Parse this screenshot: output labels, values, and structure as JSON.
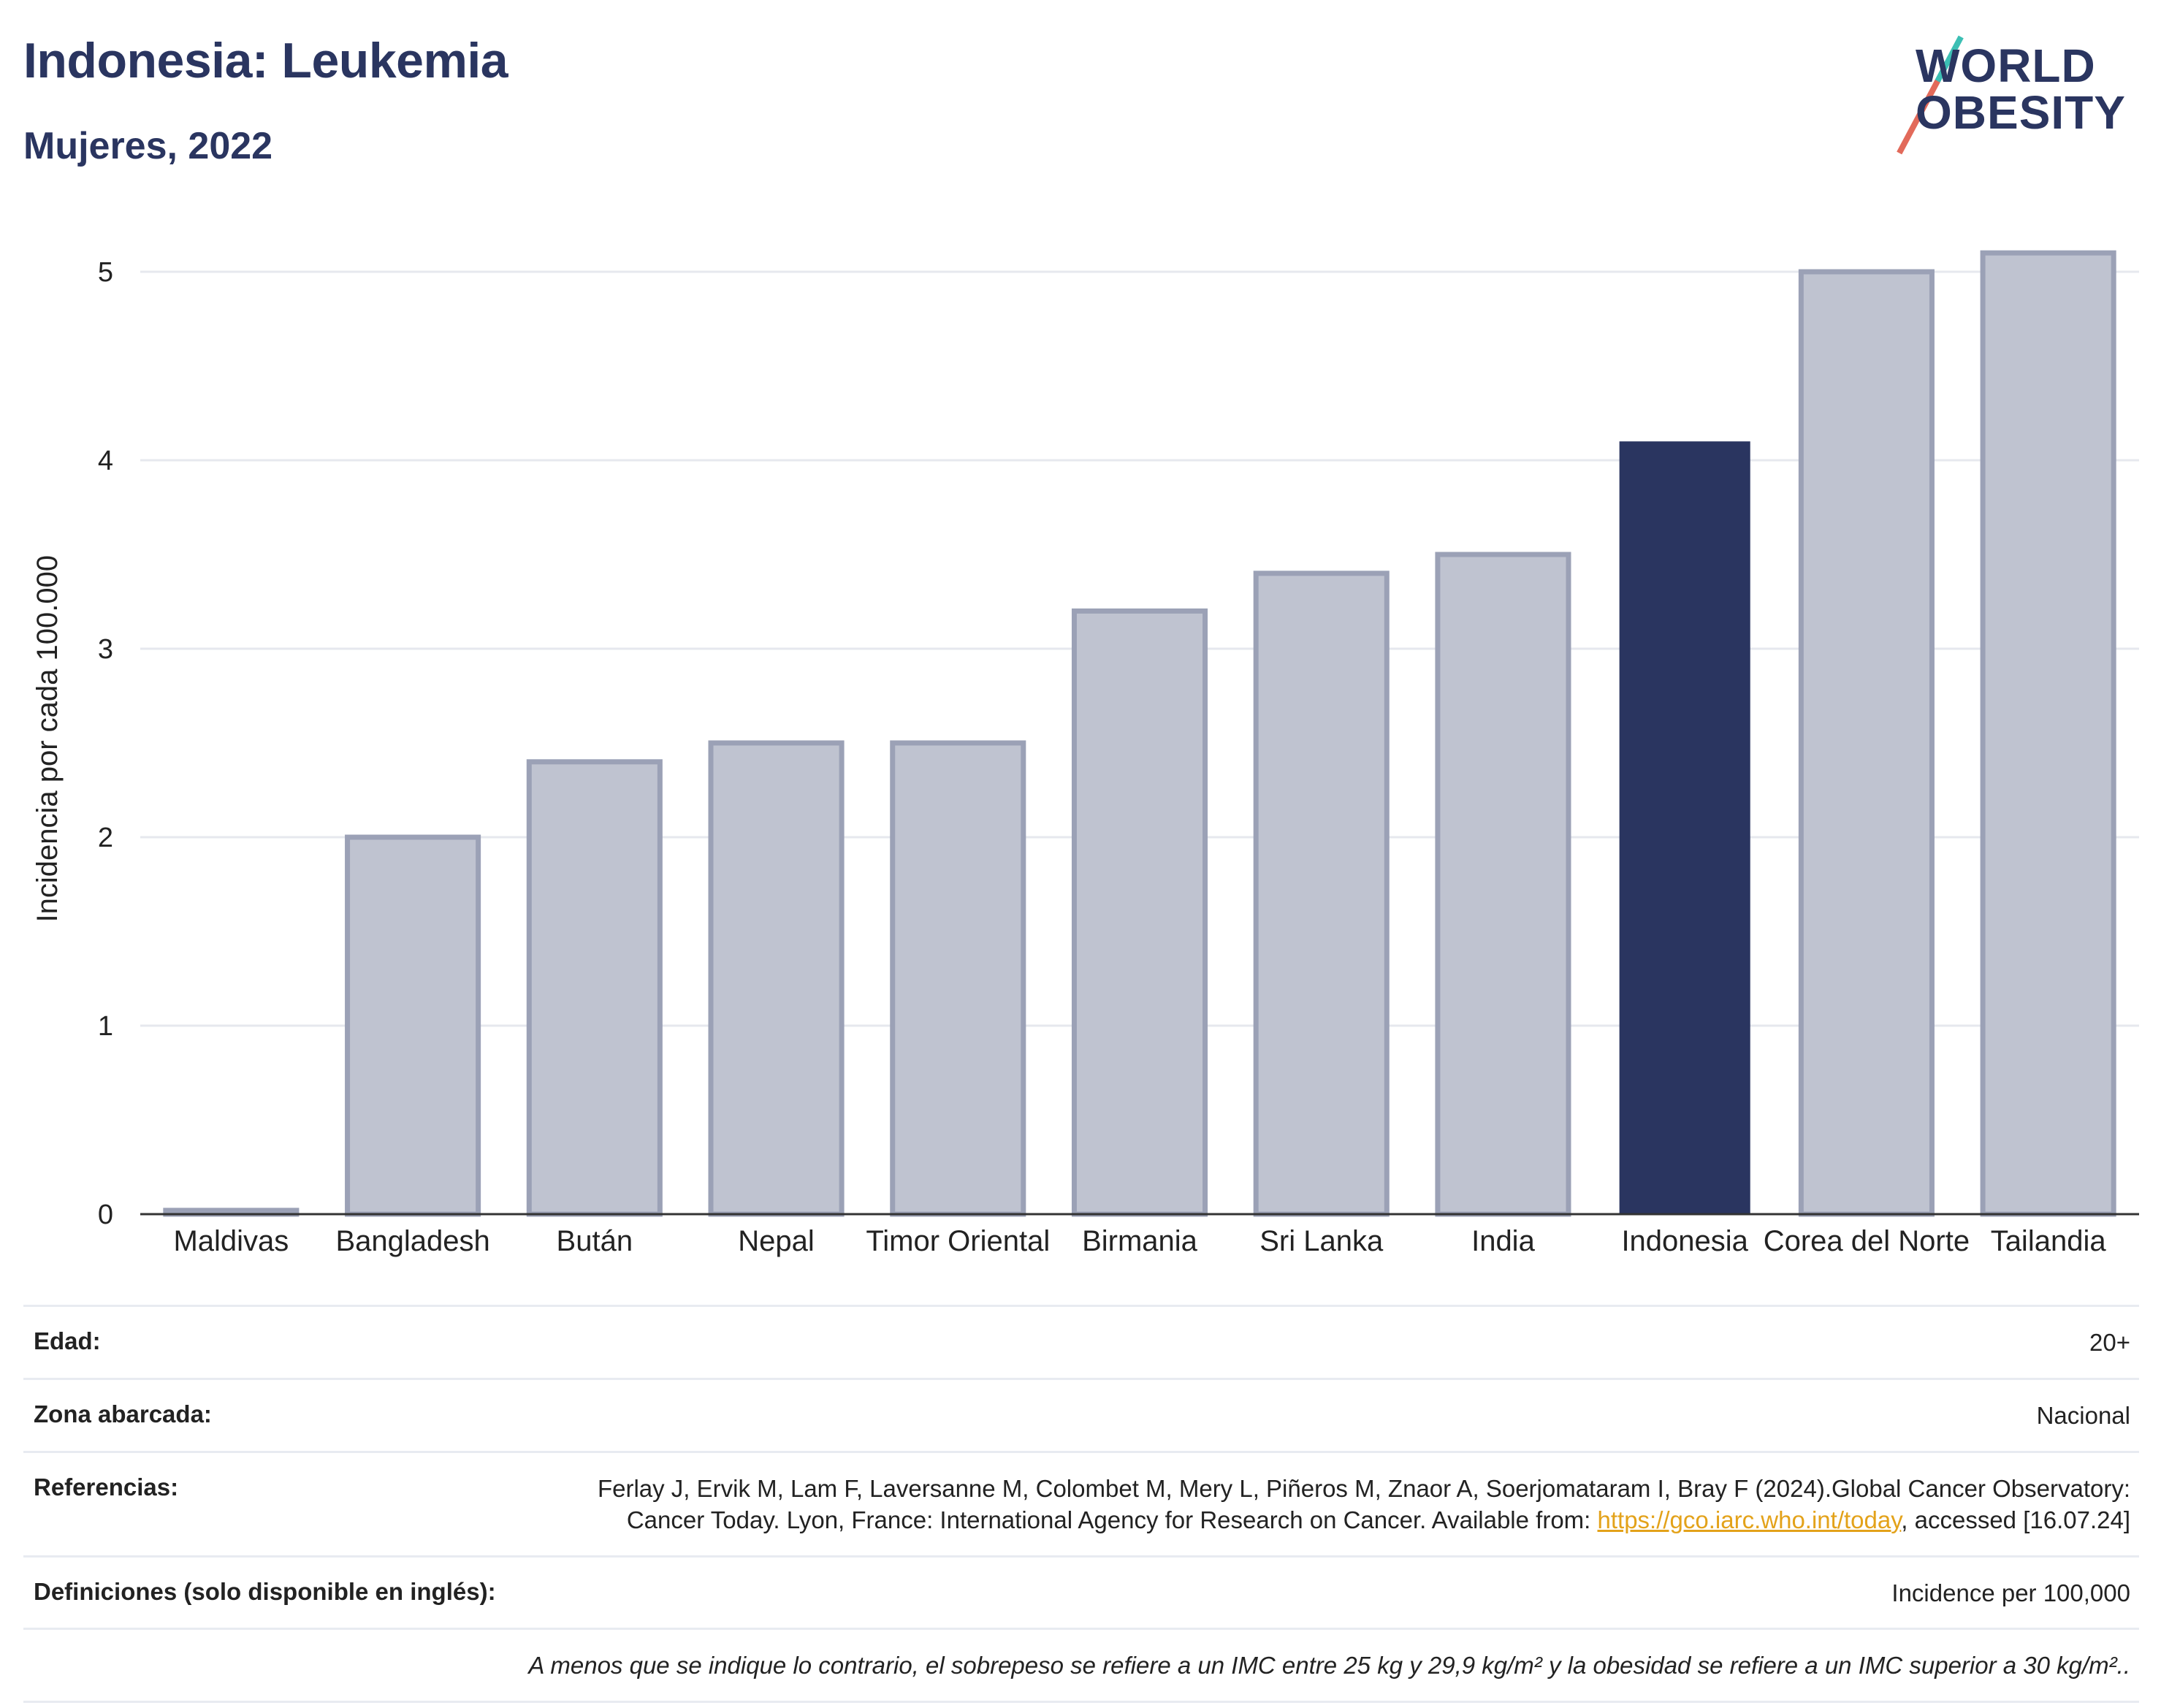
{
  "header": {
    "title": "Indonesia: Leukemia",
    "subtitle": "Mujeres, 2022"
  },
  "logo": {
    "line1": "WORLD",
    "line2": "OBESITY",
    "colors": {
      "text": "#2a3560",
      "slash_top": "#3cbfb4",
      "slash_bottom": "#e26a5a"
    }
  },
  "chart_data": {
    "type": "bar",
    "title": "",
    "xlabel": "",
    "ylabel": "Incidencia por cada 100.000",
    "ylim": [
      0,
      5.2
    ],
    "yticks": [
      0,
      1,
      2,
      3,
      4,
      5
    ],
    "grid": true,
    "categories": [
      "Maldivas",
      "Bangladesh",
      "Bután",
      "Nepal",
      "Timor Oriental",
      "Birmania",
      "Sri Lanka",
      "India",
      "Indonesia",
      "Corea del Norte",
      "Tailandia"
    ],
    "values": [
      0.02,
      2.0,
      2.4,
      2.5,
      2.5,
      3.2,
      3.4,
      3.5,
      4.1,
      5.0,
      5.1
    ],
    "highlight": "Indonesia",
    "colors": {
      "bar": "#bfc3d0",
      "bar_border": "#9ba1b6",
      "highlight": "#2a3560",
      "grid": "#e6e8ee",
      "axis": "#333333"
    }
  },
  "info": {
    "age_label": "Edad:",
    "age_value": "20+",
    "area_label": "Zona abarcada:",
    "area_value": "Nacional",
    "ref_label": "Referencias:",
    "ref_text_1": "Ferlay J, Ervik M, Lam F, Laversanne M, Colombet M, Mery L, Piñeros M, Znaor A, Soerjomataram I, Bray F (2024).Global Cancer Observatory: Cancer Today. Lyon, France: International Agency for Research on Cancer. Available from: ",
    "ref_link": "https://gco.iarc.who.int/today",
    "ref_text_2": ", accessed [16.07.24]",
    "def_label": "Definiciones (solo disponible en inglés):",
    "def_value": "Incidence per 100,000",
    "note": "A menos que se indique lo contrario, el sobrepeso se refiere a un IMC entre 25 kg y 29,9 kg/m² y la obesidad se refiere a un IMC superior a 30 kg/m².."
  }
}
